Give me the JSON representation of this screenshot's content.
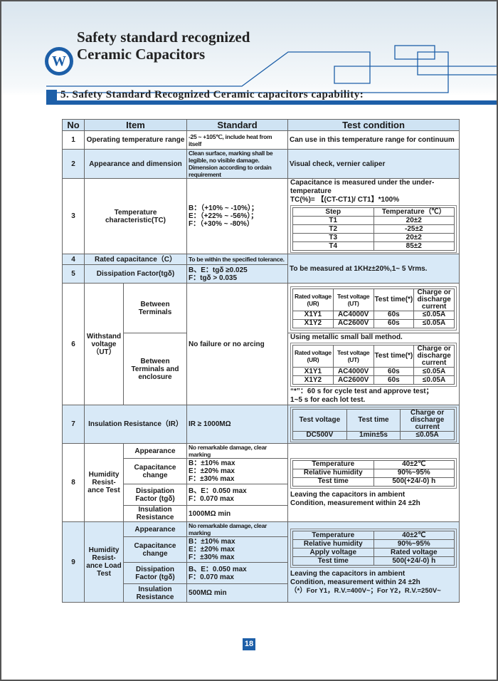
{
  "header": {
    "title_line1": "Safety standard recognized",
    "title_line2": "Ceramic Capacitors",
    "logo_letter": "W"
  },
  "section_title": "5. Safety Standard Recognized Ceramic capacitors capability:",
  "colors": {
    "brand_blue": "#1d5fa8",
    "row_blue": "#d8e9f7",
    "header_blue": "#cfe3f3"
  },
  "table": {
    "headers": [
      "No",
      "Item",
      "Standard",
      "Test condition"
    ],
    "r1": {
      "no": "1",
      "item": "Operating temperature range",
      "standard": "-25 ~ +105℃, include heat from itself",
      "test": "Can use in this temperature range for continuum"
    },
    "r2": {
      "no": "2",
      "item": "Appearance and dimension",
      "standard": "Clean surface, marking shall be legible, no visible damage. Dimension according to ordain requirement",
      "test": "Visual check, vernier caliper"
    },
    "r3": {
      "no": "3",
      "item": "Temperature characteristic(TC)",
      "standard": [
        "B：（+10% ~ -10%）；",
        "E：（+22% ~ -56%）；",
        "F：（+30% ~ -80%）"
      ],
      "test_line1": "Capacitance is measured under the under-temperature",
      "test_formula": "TC(%)= 【(CT-CT1)/ CT1】*100%",
      "step_headers": [
        "Step",
        "Temperature（℃）"
      ],
      "steps": [
        [
          "T1",
          "20±2"
        ],
        [
          "T2",
          "-25±2"
        ],
        [
          "T3",
          "20±2"
        ],
        [
          "T4",
          "85±2"
        ]
      ]
    },
    "r4": {
      "no": "4",
      "item": "Rated capacitance（C）",
      "standard": "To be within the specified tolerance."
    },
    "r5": {
      "no": "5",
      "item": "Dissipation Factor(tgδ)",
      "standard": [
        "B、E：tgδ ≥0.025",
        "F：tgδ > 0.035"
      ]
    },
    "r45_test": "To be measured at 1KHz±20%,1~ 5 Vrms.",
    "r6": {
      "no": "6",
      "item": "Withstand voltage（UT）",
      "sub1": "Between Terminals",
      "sub2": "Between Terminals and enclosure",
      "standard": "No failure or no arcing",
      "wv_headers": [
        "Rated voltage (UR)",
        "Test voltage (UT)",
        "Test time(*)",
        "Charge or discharge current"
      ],
      "wv_rows": [
        [
          "X1Y1",
          "AC4000V",
          "60s",
          "≤0.05A"
        ],
        [
          "X1Y2",
          "AC2600V",
          "60s",
          "≤0.05A"
        ]
      ],
      "ball_method": "Using metallic small ball method.",
      "note1": "“*”：60 s for cycle test and approve test；",
      "note2": "1~5 s for each lot test."
    },
    "r7": {
      "no": "7",
      "item": "Insulation Resistance（IR）",
      "standard": "IR ≥ 1000MΩ",
      "headers": [
        "Test voltage",
        "Test time",
        "Charge or discharge current"
      ],
      "values": [
        "DC500V",
        "1min±5s",
        "≤0.05A"
      ]
    },
    "r8": {
      "no": "8",
      "item": "Humidity Resist-ance Test",
      "subs": [
        {
          "name": "Appearance",
          "std": "No remarkable damage, clear marking"
        },
        {
          "name": "Capacitance change",
          "std": [
            "B：±10% max",
            "E：±20% max",
            "F：±30% max"
          ]
        },
        {
          "name": "Dissipation Factor (tgδ)",
          "std": [
            "B、E：0.050 max",
            "F：0.070 max"
          ]
        },
        {
          "name": "Insulation Resistance",
          "std": "1000MΩ min"
        }
      ],
      "cond": [
        [
          "Temperature",
          "40±2℃"
        ],
        [
          "Relative humidity",
          "90%~95%"
        ],
        [
          "Test time",
          "500(+24/-0) h"
        ]
      ],
      "note": [
        "Leaving the capacitors in ambient",
        "Condition, measurement within 24 ±2h"
      ]
    },
    "r9": {
      "no": "9",
      "item": "Humidity Resist-ance Load Test",
      "subs": [
        {
          "name": "Appearance",
          "std": "No remarkable damage, clear marking"
        },
        {
          "name": "Capacitance change",
          "std": [
            "B：±10% max",
            "E：±20% max",
            "F：±30% max"
          ]
        },
        {
          "name": "Dissipation Factor (tgδ)",
          "std": [
            "B、E：0.050 max",
            "F：0.070 max"
          ]
        },
        {
          "name": "Insulation Resistance",
          "std": "500MΩ min"
        }
      ],
      "cond": [
        [
          "Temperature",
          "40±2℃"
        ],
        [
          "Relative humidity",
          "90%~95%"
        ],
        [
          "Apply voltage",
          "Rated voltage"
        ],
        [
          "Test time",
          "500(+24/-0) h"
        ]
      ],
      "note": [
        "Leaving the capacitors in ambient",
        "Condition, measurement within 24 ±2h",
        "（*）For Y1，R.V.=400V~；For Y2，R.V.=250V~"
      ]
    }
  },
  "page_number": "18"
}
